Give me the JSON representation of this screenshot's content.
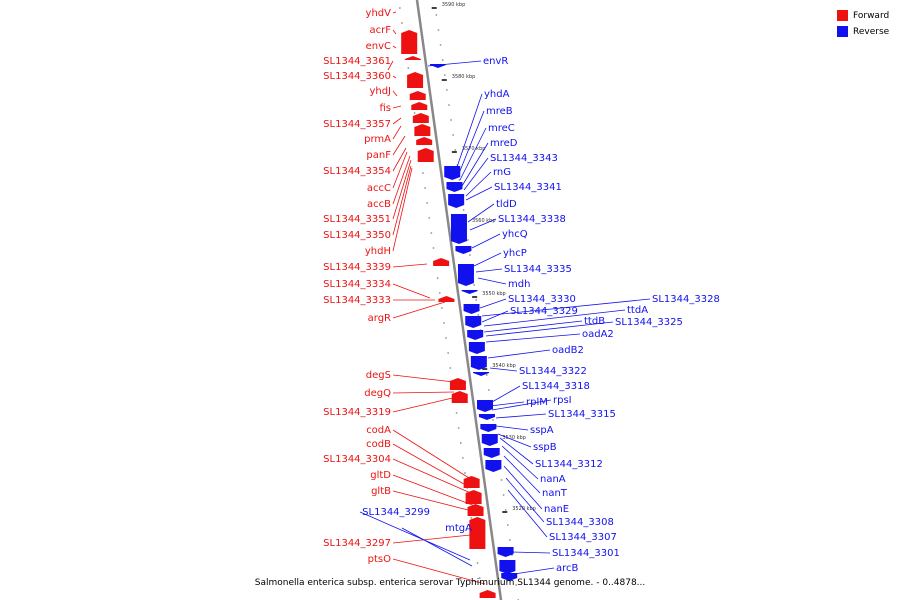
{
  "colors": {
    "forward": "#ee1111",
    "reverse": "#1111ee",
    "backbone": "#888888",
    "tick": "#111111"
  },
  "legend": [
    {
      "label": "Forward",
      "color": "#ee1111"
    },
    {
      "label": "Reverse",
      "color": "#1111ee"
    }
  ],
  "caption": "Salmonella enterica subsp. enterica serovar Typhimurium SL1344 genome. - 0..4878...",
  "tick_labels": [
    "3590 kbp",
    "3580 kbp",
    "3570 kbp",
    "3560 kbp",
    "3550 kbp",
    "3540 kbp",
    "3530 kbp",
    "3520 kbp"
  ],
  "forward_genes": [
    "yhdV",
    "acrF",
    "envC",
    "SL1344_3361",
    "SL1344_3360",
    "yhdJ",
    "fis",
    "SL1344_3357",
    "prmA",
    "panF",
    "SL1344_3354",
    "accC",
    "accB",
    "SL1344_3351",
    "SL1344_3350",
    "yhdH",
    "SL1344_3339",
    "SL1344_3334",
    "SL1344_3333",
    "argR",
    "degS",
    "degQ",
    "SL1344_3319",
    "codA",
    "codB",
    "SL1344_3304",
    "gltD",
    "gltB",
    "SL1344_3297",
    "ptsO"
  ],
  "reverse_genes": [
    "envR",
    "yhdA",
    "mreB",
    "mreC",
    "mreD",
    "SL1344_3343",
    "rnG",
    "SL1344_3341",
    "tldD",
    "SL1344_3338",
    "yhcQ",
    "yhcP",
    "SL1344_3335",
    "mdh",
    "SL1344_3330",
    "SL1344_3328",
    "SL1344_3329",
    "ttdA",
    "ttdB",
    "SL1344_3325",
    "oadA2",
    "oadB2",
    "SL1344_3322",
    "SL1344_3318",
    "rplM",
    "rpsI",
    "SL1344_3315",
    "sspA",
    "sspB",
    "SL1344_3312",
    "nanA",
    "nanT",
    "nanE",
    "SL1344_3308",
    "SL1344_3307",
    "SL1344_3299",
    "mtgA",
    "SL1344_3301",
    "arcB"
  ]
}
